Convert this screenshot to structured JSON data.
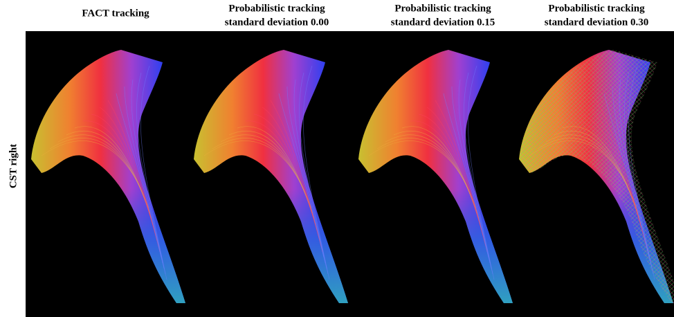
{
  "columns": [
    {
      "lines": [
        "FACT tracking"
      ]
    },
    {
      "lines": [
        "Probabilistic tracking",
        "standard deviation 0.00"
      ]
    },
    {
      "lines": [
        "Probabilistic tracking",
        "standard deviation 0.15"
      ]
    },
    {
      "lines": [
        "Probabilistic tracking",
        "standard deviation 0.30"
      ]
    }
  ],
  "row_label": "CST right"
}
